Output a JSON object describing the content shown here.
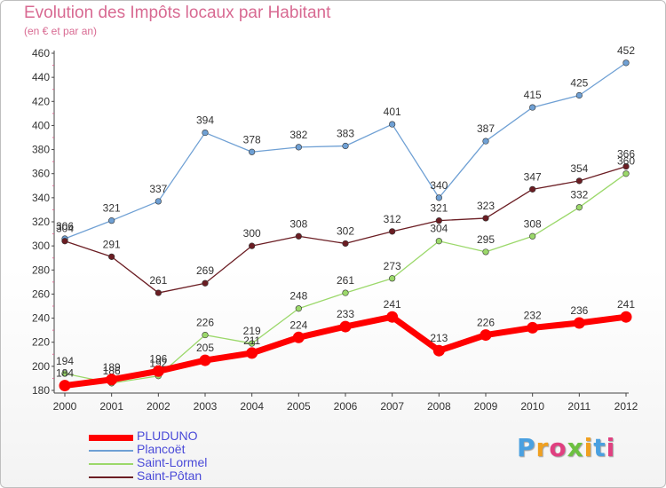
{
  "chart_data": {
    "type": "line",
    "title": "Evolution des Impôts locaux par Habitant",
    "subtitle": "(en € et par an)",
    "xlabel": "",
    "ylabel": "",
    "x": [
      "2000",
      "2001",
      "2002",
      "2003",
      "2004",
      "2005",
      "2006",
      "2007",
      "2008",
      "2009",
      "2010",
      "2011",
      "2012"
    ],
    "ylim": [
      180,
      460
    ],
    "yticks": [
      180,
      200,
      220,
      240,
      260,
      280,
      300,
      320,
      340,
      360,
      380,
      400,
      420,
      440,
      460
    ],
    "grid": false,
    "legend_position": "bottom-left",
    "series": [
      {
        "name": "Plancoët",
        "color": "#6fa0d4",
        "values": [
          306,
          321,
          337,
          394,
          378,
          382,
          383,
          401,
          340,
          387,
          415,
          425,
          452
        ],
        "labels": [
          "306",
          "321",
          "337",
          "394",
          "378",
          "382",
          "383",
          "401",
          "340",
          "387",
          "415",
          "425",
          "452"
        ]
      },
      {
        "name": "Saint-Pôtan",
        "color": "#6b1d23",
        "values": [
          304,
          291,
          261,
          269,
          300,
          308,
          302,
          312,
          321,
          323,
          347,
          354,
          366
        ],
        "labels": [
          "304",
          "291",
          "261",
          "269",
          "300",
          "308",
          "302",
          "312",
          "321",
          "323",
          "347",
          "354",
          "366"
        ]
      },
      {
        "name": "Saint-Lormel",
        "color": "#9bd86a",
        "values": [
          194,
          186,
          192,
          226,
          219,
          248,
          261,
          273,
          304,
          295,
          308,
          332,
          360
        ],
        "labels": [
          "194",
          "186",
          "192",
          "226",
          "219",
          "248",
          "261",
          "273",
          "304",
          "295",
          "308",
          "332",
          "360"
        ]
      },
      {
        "name": "PLUDUNO",
        "color": "#ff0000",
        "values": [
          184,
          189,
          196,
          205,
          211,
          224,
          233,
          241,
          213,
          226,
          232,
          236,
          241
        ],
        "labels": [
          "184",
          "189",
          "196",
          "205",
          "211",
          "224",
          "233",
          "241",
          "213",
          "226",
          "232",
          "236",
          "241"
        ]
      }
    ]
  },
  "legend": {
    "items": [
      {
        "name": "PLUDUNO",
        "color": "#ff0000"
      },
      {
        "name": "Plancoët",
        "color": "#6fa0d4"
      },
      {
        "name": "Saint-Lormel",
        "color": "#9bd86a"
      },
      {
        "name": "Saint-Pôtan",
        "color": "#6b1d23"
      }
    ]
  },
  "logo": {
    "text": "Proxiti",
    "colors": [
      "#4aa0e0",
      "#f0a020",
      "#e04080",
      "#6cc040",
      "#f0a020",
      "#4aa0e0",
      "#e04080"
    ]
  }
}
